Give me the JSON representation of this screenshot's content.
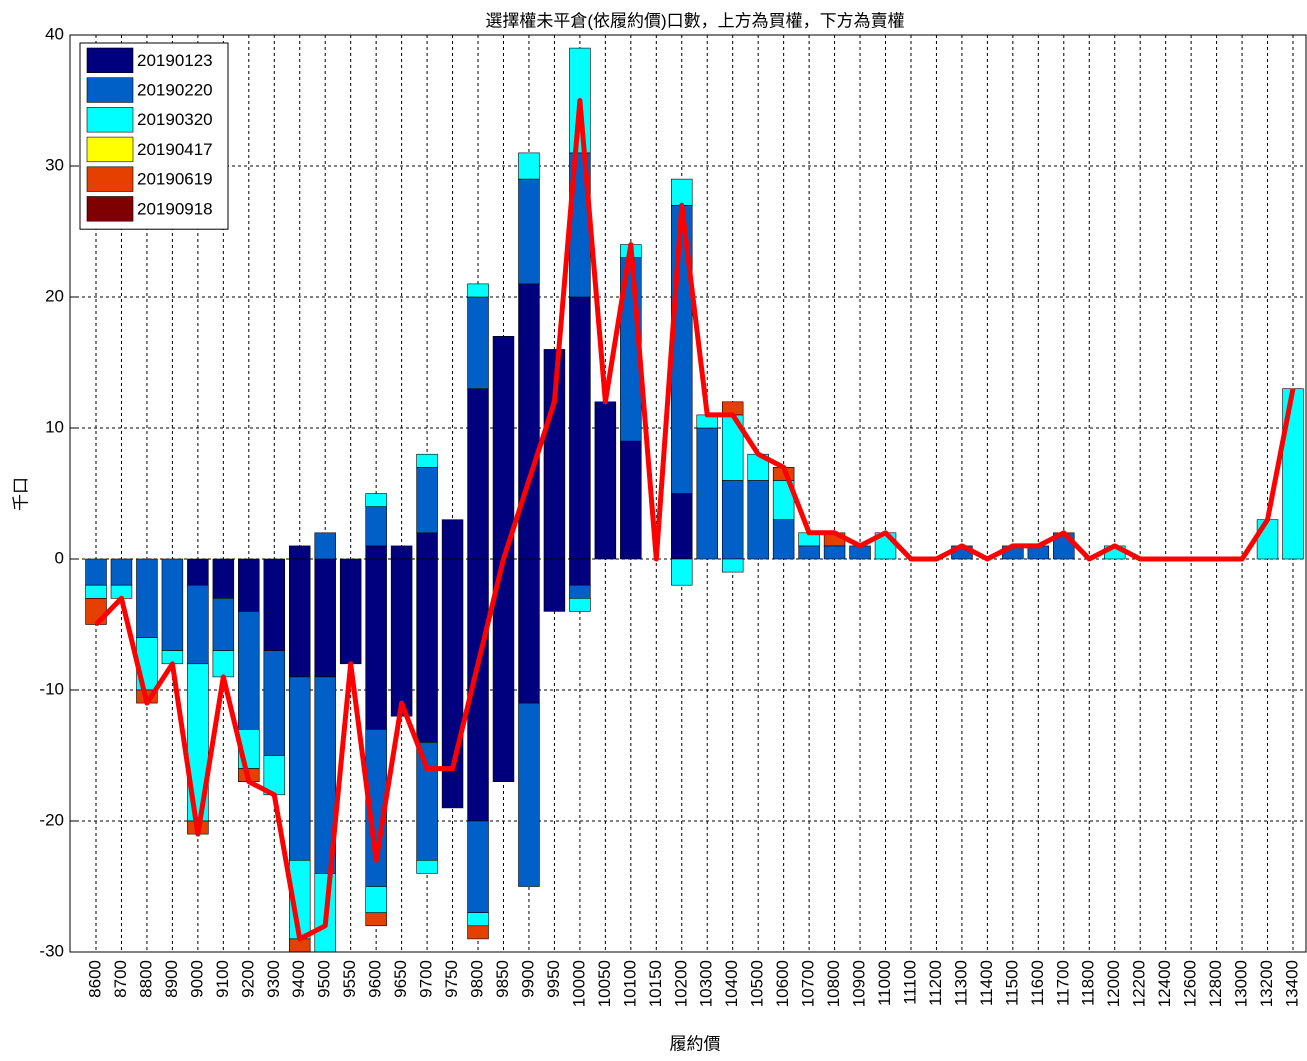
{
  "chart_data": {
    "type": "bar",
    "stacked": true,
    "title": "選擇權未平倉(依履約價)口數，上方為買權，下方為賣權",
    "y_label": "千口",
    "x_label": "履約價",
    "categories": [
      "8600",
      "8700",
      "8800",
      "8900",
      "9000",
      "9100",
      "9200",
      "9300",
      "9400",
      "9500",
      "9550",
      "9600",
      "9650",
      "9700",
      "9750",
      "9800",
      "9850",
      "9900",
      "9950",
      "10000",
      "10050",
      "10100",
      "10150",
      "10200",
      "10300",
      "10400",
      "10500",
      "10600",
      "10700",
      "10800",
      "10900",
      "11000",
      "11100",
      "11200",
      "11300",
      "11400",
      "11500",
      "11600",
      "11700",
      "11800",
      "12000",
      "12200",
      "12400",
      "12600",
      "12800",
      "13000",
      "13200",
      "13400"
    ],
    "series": [
      {
        "name": "20190123",
        "color": "#00007f",
        "values": [
          0,
          0,
          0,
          0,
          0,
          0,
          0,
          0,
          1,
          0,
          0,
          1,
          1,
          2,
          3,
          13,
          17,
          21,
          16,
          20,
          12,
          9,
          0,
          5,
          0,
          0,
          0,
          0,
          0,
          0,
          0,
          0,
          0,
          0,
          0,
          0,
          0,
          0,
          0,
          0,
          0,
          0,
          0,
          0,
          0,
          0,
          0,
          0
        ],
        "negative_values": [
          0,
          0,
          0,
          0,
          -2,
          -3,
          -4,
          -7,
          -9,
          -9,
          -8,
          -13,
          -12,
          -14,
          -19,
          -20,
          -17,
          -11,
          -4,
          -2,
          0,
          0,
          0,
          0,
          0,
          0,
          0,
          0,
          0,
          0,
          0,
          0,
          0,
          0,
          0,
          0,
          0,
          0,
          0,
          0,
          0,
          0,
          0,
          0,
          0,
          0,
          0,
          0
        ]
      },
      {
        "name": "20190220",
        "color": "#0060c8",
        "values": [
          0,
          0,
          0,
          0,
          0,
          0,
          0,
          0,
          0,
          2,
          0,
          3,
          0,
          5,
          0,
          7,
          0,
          8,
          0,
          11,
          0,
          14,
          0,
          22,
          10,
          6,
          6,
          3,
          1,
          1,
          1,
          0,
          0,
          0,
          1,
          0,
          1,
          1,
          2,
          0,
          0,
          0,
          0,
          0,
          0,
          0,
          0,
          0
        ],
        "negative_values": [
          -2,
          -2,
          -6,
          -7,
          -6,
          -4,
          -9,
          -8,
          -14,
          -15,
          0,
          -12,
          0,
          -9,
          0,
          -7,
          0,
          -14,
          0,
          -1,
          0,
          0,
          0,
          0,
          0,
          0,
          0,
          0,
          0,
          0,
          0,
          0,
          0,
          0,
          0,
          0,
          0,
          0,
          0,
          0,
          0,
          0,
          0,
          0,
          0,
          0,
          0,
          0
        ]
      },
      {
        "name": "20190320",
        "color": "#00ffff",
        "values": [
          0,
          0,
          0,
          0,
          0,
          0,
          0,
          0,
          0,
          0,
          0,
          1,
          0,
          1,
          0,
          1,
          0,
          2,
          0,
          8,
          0,
          1,
          0,
          2,
          1,
          5,
          2,
          3,
          1,
          0,
          0,
          2,
          0,
          0,
          0,
          0,
          0,
          0,
          0,
          0,
          1,
          0,
          0,
          0,
          0,
          0,
          3,
          13
        ],
        "negative_values": [
          -1,
          -1,
          -4,
          -1,
          -12,
          -2,
          -3,
          -3,
          -6,
          -6,
          0,
          -2,
          0,
          -1,
          0,
          -1,
          0,
          0,
          0,
          -1,
          0,
          0,
          0,
          -2,
          0,
          -1,
          0,
          0,
          0,
          0,
          0,
          0,
          0,
          0,
          0,
          0,
          0,
          0,
          0,
          0,
          0,
          0,
          0,
          0,
          0,
          0,
          0,
          0
        ]
      },
      {
        "name": "20190417",
        "color": "#ffff00",
        "values": [
          0,
          0,
          0,
          0,
          0,
          0,
          0,
          0,
          0,
          0,
          0,
          0,
          0,
          0,
          0,
          0,
          0,
          0,
          0,
          0,
          0,
          0,
          0,
          0,
          0,
          0,
          0,
          0,
          0,
          0,
          0,
          0,
          0,
          0,
          0,
          0,
          0,
          0,
          0,
          0,
          0,
          0,
          0,
          0,
          0,
          0,
          0,
          0
        ],
        "negative_values": [
          0,
          0,
          0,
          0,
          0,
          0,
          0,
          0,
          0,
          0,
          0,
          0,
          0,
          0,
          0,
          0,
          0,
          0,
          0,
          0,
          0,
          0,
          0,
          0,
          0,
          0,
          0,
          0,
          0,
          0,
          0,
          0,
          0,
          0,
          0,
          0,
          0,
          0,
          0,
          0,
          0,
          0,
          0,
          0,
          0,
          0,
          0,
          0
        ]
      },
      {
        "name": "20190619",
        "color": "#e64000",
        "values": [
          0,
          0,
          0,
          0,
          0,
          0,
          0,
          0,
          0,
          0,
          0,
          0,
          0,
          0,
          0,
          0,
          0,
          0,
          0,
          0,
          0,
          0,
          0,
          0,
          0,
          1,
          0,
          1,
          0,
          1,
          0,
          0,
          0,
          0,
          0,
          0,
          0,
          0,
          0,
          0,
          0,
          0,
          0,
          0,
          0,
          0,
          0,
          0
        ],
        "negative_values": [
          -2,
          0,
          -1,
          0,
          -1,
          0,
          -1,
          0,
          -1,
          0,
          0,
          -1,
          0,
          0,
          0,
          -1,
          0,
          0,
          0,
          0,
          0,
          0,
          0,
          0,
          0,
          0,
          0,
          0,
          0,
          0,
          0,
          0,
          0,
          0,
          0,
          0,
          0,
          0,
          0,
          0,
          0,
          0,
          0,
          0,
          0,
          0,
          0,
          0
        ]
      },
      {
        "name": "20190918",
        "color": "#7f0000",
        "values": [
          0,
          0,
          0,
          0,
          0,
          0,
          0,
          0,
          0,
          0,
          0,
          0,
          0,
          0,
          0,
          0,
          0,
          0,
          0,
          0,
          0,
          0,
          0,
          0,
          0,
          0,
          0,
          0,
          0,
          0,
          0,
          0,
          0,
          0,
          0,
          0,
          0,
          0,
          0,
          0,
          0,
          0,
          0,
          0,
          0,
          0,
          0,
          0
        ],
        "negative_values": [
          0,
          0,
          0,
          0,
          0,
          0,
          0,
          0,
          0,
          0,
          0,
          0,
          0,
          0,
          0,
          0,
          0,
          0,
          0,
          0,
          0,
          0,
          0,
          0,
          0,
          0,
          0,
          0,
          0,
          0,
          0,
          0,
          0,
          0,
          0,
          0,
          0,
          0,
          0,
          0,
          0,
          0,
          0,
          0,
          0,
          0,
          0,
          0
        ]
      }
    ],
    "line": {
      "color": "#ff0000",
      "values": [
        -5,
        -3,
        -11,
        -8,
        -21,
        -9,
        -17,
        -18,
        -29,
        -28,
        -8,
        -23,
        -11,
        -16,
        -16,
        -8,
        0,
        6,
        12,
        35,
        12,
        24,
        0,
        27,
        11,
        11,
        8,
        7,
        2,
        2,
        1,
        2,
        0,
        0,
        1,
        0,
        1,
        1,
        2,
        0,
        1,
        0,
        0,
        0,
        0,
        0,
        3,
        13
      ]
    },
    "ylim": [
      -30,
      40
    ],
    "yticks": [
      -30,
      -20,
      -10,
      0,
      10,
      20,
      30,
      40
    ],
    "grid": true,
    "legend": "upper left"
  }
}
